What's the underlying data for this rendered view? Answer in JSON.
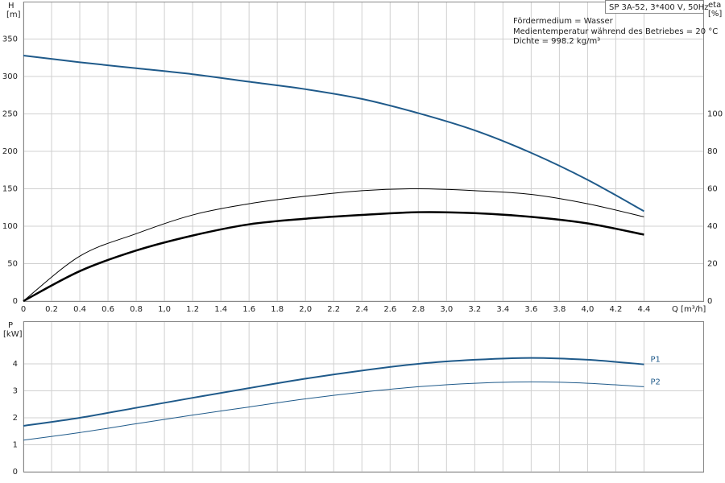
{
  "chart_data": [
    {
      "type": "line",
      "title": "SP 3A-52, 3*400 V, 50Hz",
      "annotations": [
        "Fördermedium = Wasser",
        "Medientemperatur während des Betriebes = 20 °C",
        "Dichte = 998.2 kg/m³"
      ],
      "y_label": "H",
      "y_unit": "[m]",
      "y2_label": "eta",
      "y2_unit": "[%]",
      "x_label": "Q [m³/h]",
      "x": [
        0,
        0.4,
        0.8,
        1.2,
        1.6,
        2.0,
        2.4,
        2.8,
        3.2,
        3.6,
        4.0,
        4.4
      ],
      "series": [
        {
          "color": "#1f5a8a",
          "width": 2,
          "values": [
            328,
            319,
            311,
            303,
            293,
            283,
            270,
            251,
            228,
            198,
            162,
            120
          ]
        },
        {
          "color": "#000000",
          "width": 1,
          "axis": "y2",
          "values": [
            0,
            24,
            36,
            46,
            52,
            56,
            59,
            60,
            59,
            57,
            52,
            45
          ]
        },
        {
          "color": "#000000",
          "width": 2.5,
          "axis": "y2",
          "values": [
            0,
            16,
            27,
            35,
            41,
            44,
            46,
            47.5,
            47,
            45,
            41.5,
            35.5
          ]
        }
      ],
      "xlim": [
        0,
        4.82
      ],
      "xticks": [
        0,
        0.2,
        0.4,
        0.6,
        0.8,
        {
          "value": 1.0,
          "label": "1,0"
        },
        1.2,
        1.4,
        1.6,
        1.8,
        {
          "value": 2.0,
          "label": "2,0"
        },
        2.2,
        2.4,
        2.6,
        2.8,
        {
          "value": 3.0,
          "label": "3,0"
        },
        3.2,
        3.4,
        3.6,
        3.8,
        {
          "value": 4.0,
          "label": "4,0"
        },
        4.2,
        4.4
      ],
      "ylim": [
        0,
        400
      ],
      "yticks": [
        0,
        50,
        100,
        150,
        200,
        250,
        300,
        350
      ],
      "y2lim": [
        0,
        160
      ],
      "y2ticks": [
        0,
        20,
        40,
        60,
        80,
        100
      ],
      "grid": true
    },
    {
      "type": "line",
      "y_label": "P",
      "y_unit": "[kW]",
      "x": [
        0,
        0.4,
        0.8,
        1.2,
        1.6,
        2.0,
        2.4,
        2.8,
        3.2,
        3.6,
        4.0,
        4.4
      ],
      "series": [
        {
          "name": "P1",
          "color": "#1f5a8a",
          "width": 2,
          "values": [
            1.7,
            2.0,
            2.37,
            2.74,
            3.1,
            3.45,
            3.75,
            4.0,
            4.15,
            4.22,
            4.15,
            3.98
          ]
        },
        {
          "name": "P2",
          "color": "#1f5a8a",
          "width": 1,
          "values": [
            1.17,
            1.45,
            1.78,
            2.1,
            2.4,
            2.7,
            2.95,
            3.15,
            3.28,
            3.33,
            3.28,
            3.15
          ]
        }
      ],
      "xlim": [
        0,
        4.82
      ],
      "ylim": [
        0,
        5.58
      ],
      "yticks": [
        0,
        1,
        2,
        3,
        4
      ],
      "grid": true
    }
  ]
}
